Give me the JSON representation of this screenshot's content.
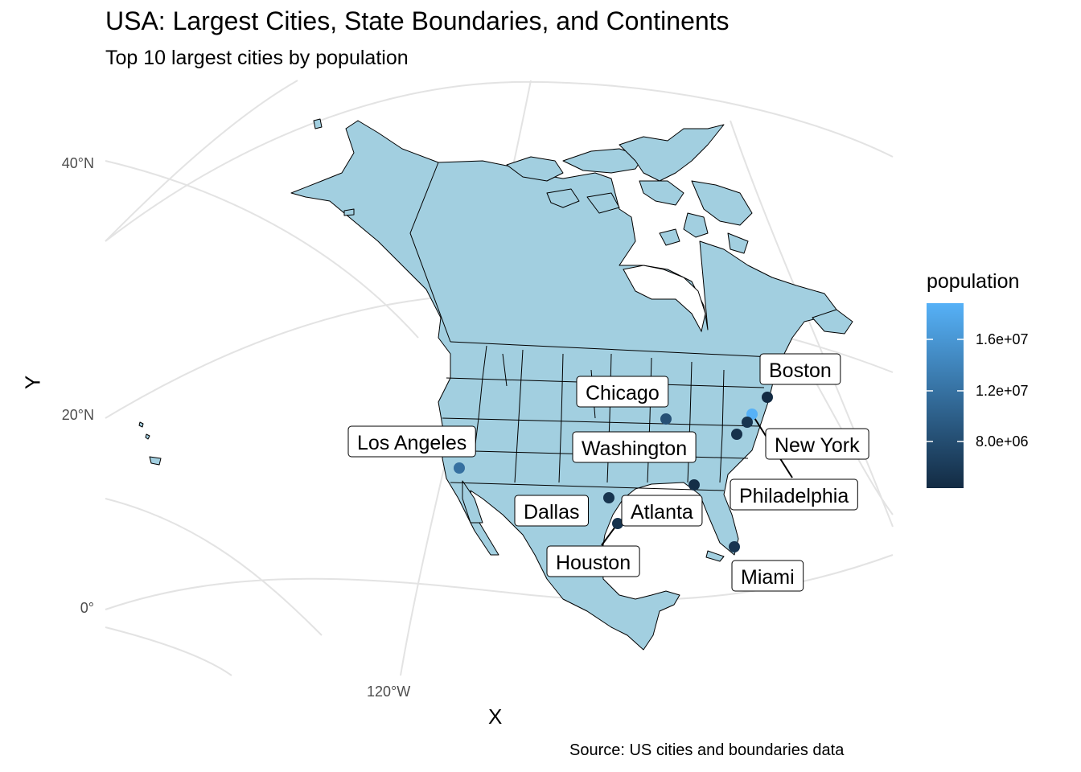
{
  "title": "USA: Largest Cities, State Boundaries, and Continents",
  "subtitle": "Top 10 largest cities by population",
  "axes": {
    "xlabel": "X",
    "ylabel": "Y"
  },
  "graticule_labels": {
    "lat": [
      "40°N",
      "20°N",
      "0°"
    ],
    "lon": [
      "120°W"
    ]
  },
  "legend": {
    "title": "population",
    "ticks": [
      "1.6e+07",
      "1.2e+07",
      "8.0e+06"
    ],
    "low_color": "#132b43",
    "high_color": "#56b1f7"
  },
  "caption": "Source: US cities and boundaries data",
  "colors": {
    "land": "#a2cfe0",
    "border": "#000000",
    "graticule": "#e3e3e3"
  },
  "chart_data": {
    "type": "map",
    "map": "North America (projected) with US state boundaries",
    "color_scale": {
      "variable": "population"
    },
    "cities": [
      {
        "name": "New York",
        "population": 18800000
      },
      {
        "name": "Los Angeles",
        "population": 12000000
      },
      {
        "name": "Chicago",
        "population": 8600000
      },
      {
        "name": "Miami",
        "population": 5800000
      },
      {
        "name": "Philadelphia",
        "population": 5700000
      },
      {
        "name": "Dallas",
        "population": 5600000
      },
      {
        "name": "Houston",
        "population": 5500000
      },
      {
        "name": "Washington",
        "population": 5300000
      },
      {
        "name": "Atlanta",
        "population": 5000000
      },
      {
        "name": "Boston",
        "population": 4700000
      }
    ]
  }
}
